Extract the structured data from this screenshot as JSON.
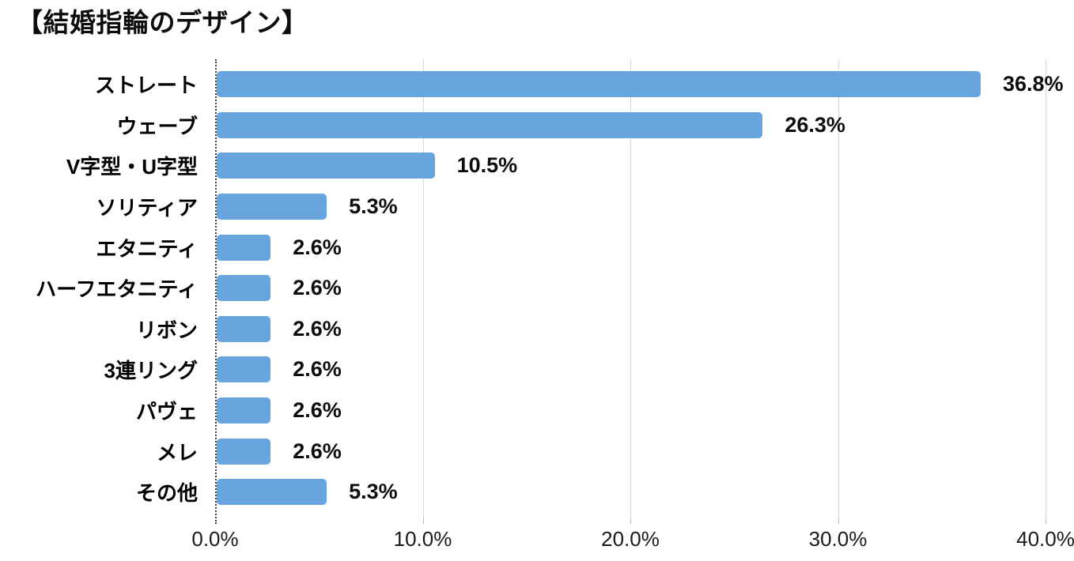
{
  "title": "【結婚指輪のデザイン】",
  "chart_data": {
    "type": "bar",
    "orientation": "horizontal",
    "title": "【結婚指輪のデザイン】",
    "categories": [
      "ストレート",
      "ウェーブ",
      "V字型・U字型",
      "ソリティア",
      "エタニティ",
      "ハーフエタニティ",
      "リボン",
      "3連リング",
      "パヴェ",
      "メレ",
      "その他"
    ],
    "values": [
      36.8,
      26.3,
      10.5,
      5.3,
      2.6,
      2.6,
      2.6,
      2.6,
      2.6,
      2.6,
      5.3
    ],
    "value_labels": [
      "36.8%",
      "26.3%",
      "10.5%",
      "5.3%",
      "2.6%",
      "2.6%",
      "2.6%",
      "2.6%",
      "2.6%",
      "2.6%",
      "5.3%"
    ],
    "xlabel": "",
    "ylabel": "",
    "xlim": [
      0,
      40
    ],
    "xticks": [
      0,
      10,
      20,
      30,
      40
    ],
    "xtick_labels": [
      "0.0%",
      "10.0%",
      "20.0%",
      "30.0%",
      "40.0%"
    ],
    "grid": "vertical",
    "legend": "none",
    "colors": {
      "bar": "#68a4dd",
      "gridline": "#d9d9d9",
      "axis": "#3f3f3f",
      "category_label": "#000000",
      "value_label": "#0d0d0d",
      "tick_label": "#1a1a1a",
      "background": "#ffffff"
    }
  }
}
